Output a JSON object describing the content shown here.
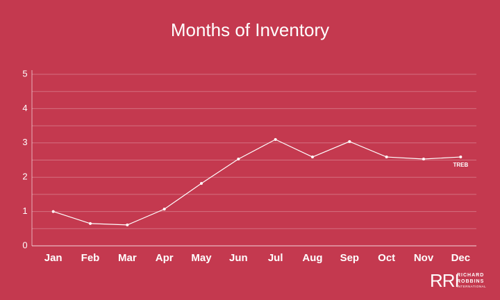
{
  "chart_data": {
    "type": "line",
    "title": "Months of Inventory",
    "categories": [
      "Jan",
      "Feb",
      "Mar",
      "Apr",
      "May",
      "Jun",
      "Jul",
      "Aug",
      "Sep",
      "Oct",
      "Nov",
      "Dec"
    ],
    "series": [
      {
        "name": "TREB",
        "color": "#ffffff",
        "values": [
          1.0,
          0.65,
          0.61,
          1.07,
          1.82,
          2.53,
          3.1,
          2.59,
          3.04,
          2.59,
          2.53,
          2.59
        ]
      }
    ],
    "ylim": [
      0,
      5
    ],
    "yticks": [
      0,
      1,
      2,
      3,
      4,
      5
    ],
    "minor_yticks": [
      0.5,
      1.5,
      2.5,
      3.5,
      4.5
    ],
    "grid": true
  },
  "logo": {
    "mark": "RRI",
    "lines": [
      "RICHARD",
      "ROBBINS",
      "INTERNATIONAL"
    ]
  }
}
